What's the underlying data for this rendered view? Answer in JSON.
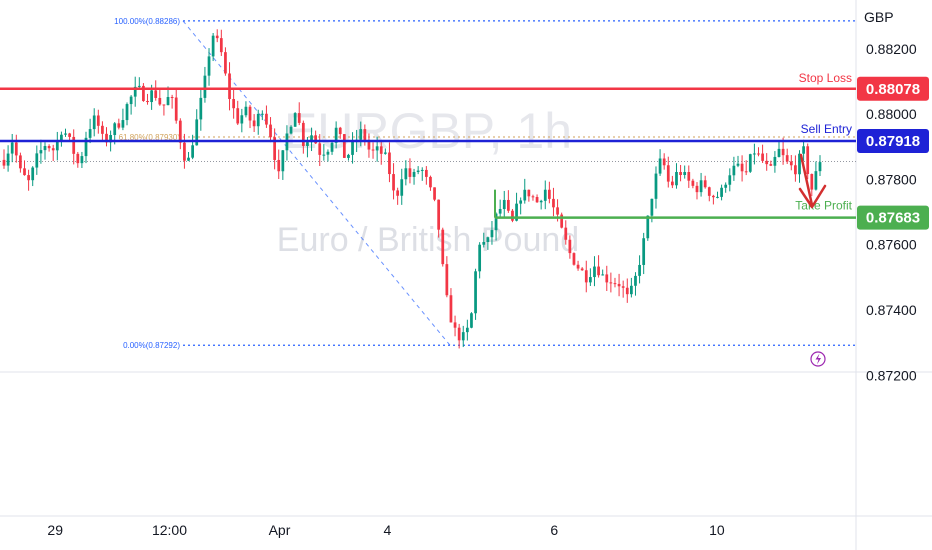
{
  "chart_data": {
    "type": "candlestick",
    "symbol": "EURGBP, 1h",
    "description": "Euro / British Pound",
    "currency": "GBP",
    "ylim": [
      0.8721,
      0.8835
    ],
    "yticks": [
      "0.88200",
      "0.88000",
      "0.87800",
      "0.87600",
      "0.87400",
      "0.87200"
    ],
    "xticks": [
      "29",
      "12:00",
      "Apr",
      "4",
      "6",
      "10"
    ],
    "levels": [
      {
        "name": "Stop Loss",
        "price": "0.88078",
        "color": "#f23645"
      },
      {
        "name": "Sell Entry",
        "price": "0.87918",
        "color": "#1e22d6"
      },
      {
        "name": "Take Profit",
        "price": "0.87683",
        "color": "#4caf50"
      }
    ],
    "fib": {
      "high": {
        "label": "100.00%(0.88286)",
        "value": 0.88286
      },
      "mid": {
        "label": "61.80%(0.87930)",
        "value": 0.8793
      },
      "low": {
        "label": "0.00%(0.87292)",
        "value": 0.87292
      }
    },
    "last_price": 0.87855,
    "path": [
      0.8786,
      0.8792,
      0.8782,
      0.8779,
      0.8787,
      0.8791,
      0.8789,
      0.8796,
      0.8791,
      0.8784,
      0.8795,
      0.8799,
      0.8791,
      0.8795,
      0.8798,
      0.8804,
      0.8808,
      0.8805,
      0.8807,
      0.8802,
      0.8806,
      0.8794,
      0.8784,
      0.8796,
      0.8808,
      0.8825,
      0.882,
      0.8806,
      0.8798,
      0.8801,
      0.8796,
      0.8802,
      0.8794,
      0.8781,
      0.8794,
      0.8802,
      0.8791,
      0.8794,
      0.8788,
      0.879,
      0.8796,
      0.8786,
      0.8791,
      0.8795,
      0.8788,
      0.8789,
      0.8786,
      0.8773,
      0.8784,
      0.878,
      0.8784,
      0.8778,
      0.877,
      0.8745,
      0.8734,
      0.8731,
      0.8735,
      0.8761,
      0.876,
      0.8768,
      0.8773,
      0.8766,
      0.8775,
      0.8776,
      0.8773,
      0.8777,
      0.8771,
      0.8764,
      0.8757,
      0.8753,
      0.875,
      0.8754,
      0.875,
      0.8749,
      0.8748,
      0.8743,
      0.8751,
      0.8763,
      0.8778,
      0.8787,
      0.8777,
      0.8783,
      0.878,
      0.8777,
      0.8779,
      0.8775,
      0.8775,
      0.8782,
      0.8784,
      0.8781,
      0.8789,
      0.8786,
      0.8782,
      0.8789,
      0.8785,
      0.8783,
      0.8789,
      0.8777,
      0.8786
    ],
    "xticks_at": [
      0.0645,
      0.198,
      0.3265,
      0.4525,
      0.6475,
      0.8375
    ],
    "annotation": "red arrow pointing down from sell entry to take profit"
  }
}
